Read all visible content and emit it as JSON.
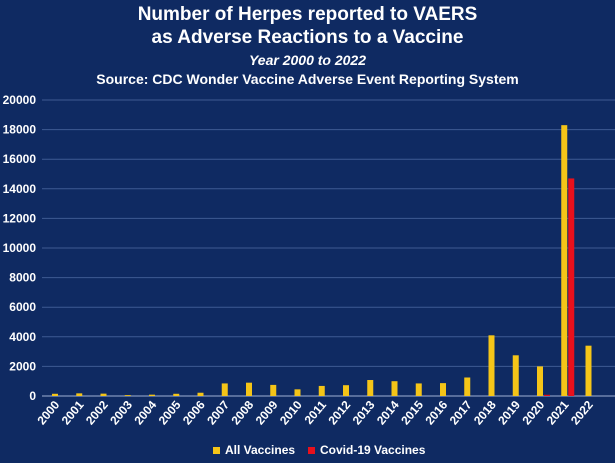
{
  "chart_data": {
    "type": "bar",
    "title_line1": "Number of Herpes reported to VAERS",
    "title_line2": "as Adverse Reactions to a Vaccine",
    "subtitle": "Year 2000 to 2022",
    "source": "Source: CDC Wonder Vaccine Adverse Event Reporting System",
    "categories": [
      "2000",
      "2001",
      "2002",
      "2003",
      "2004",
      "2005",
      "2006",
      "2007",
      "2008",
      "2009",
      "2010",
      "2011",
      "2012",
      "2013",
      "2014",
      "2015",
      "2016",
      "2017",
      "2018",
      "2019",
      "2020",
      "2021",
      "2022"
    ],
    "series": [
      {
        "name": "All Vaccines",
        "color": "#f5c518",
        "values": [
          150,
          180,
          160,
          60,
          90,
          150,
          220,
          850,
          900,
          750,
          450,
          680,
          730,
          1080,
          1000,
          850,
          870,
          1250,
          4100,
          2750,
          2000,
          18300,
          3400
        ]
      },
      {
        "name": "Covid-19 Vaccines",
        "color": "#e8101c",
        "values": [
          0,
          0,
          0,
          0,
          0,
          0,
          0,
          0,
          0,
          0,
          0,
          0,
          0,
          0,
          0,
          0,
          0,
          0,
          0,
          0,
          80,
          14700,
          0
        ]
      }
    ],
    "yticks": [
      "20000",
      "18000",
      "16000",
      "14000",
      "12000",
      "10000",
      "8000",
      "6000",
      "4000",
      "2000",
      "0"
    ],
    "ylim": [
      0,
      20000
    ],
    "grid": true,
    "legend_position": "bottom"
  }
}
